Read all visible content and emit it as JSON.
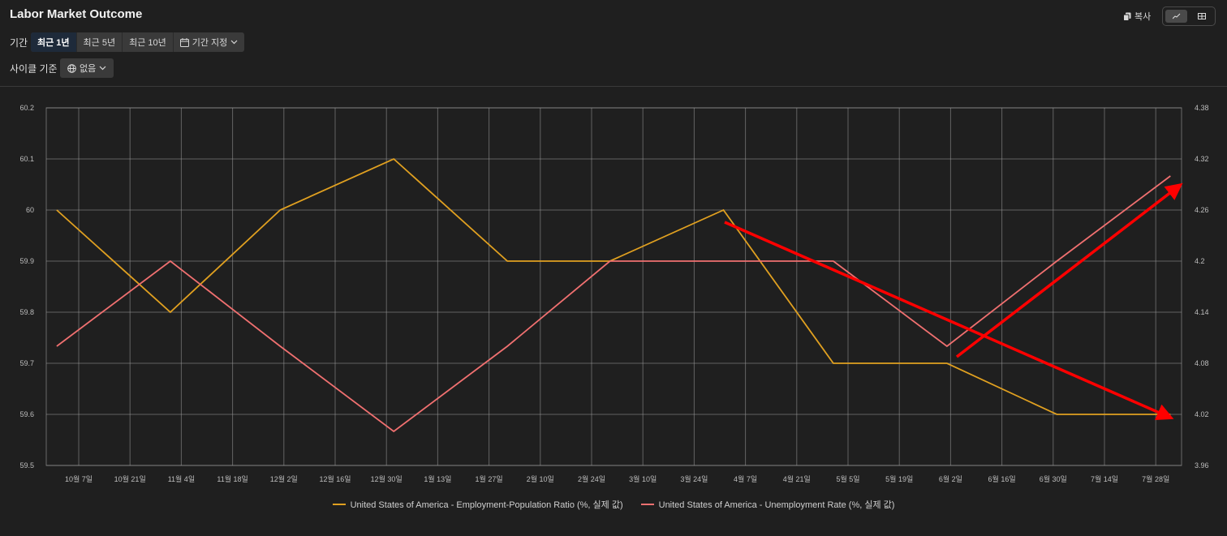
{
  "header": {
    "title": "Labor Market Outcome",
    "copy_label": "복사",
    "copy_icon": "copy-icon",
    "view_icons": [
      "line-chart-icon",
      "table-icon"
    ]
  },
  "filters": {
    "period_label": "기간",
    "period_options": [
      "최근 1년",
      "최근 5년",
      "최근 10년"
    ],
    "period_active_index": 0,
    "custom_period_label": "기간 지정",
    "cycle_label": "사이클 기준",
    "cycle_value": "없음"
  },
  "colors": {
    "employment": "#e0a020",
    "unemployment": "#f07070",
    "arrow": "#ff0000",
    "grid": "#9a9a9a"
  },
  "chart_data": {
    "type": "line",
    "x_ticks": [
      "10월 7일",
      "10월 21일",
      "11월 4일",
      "11월 18일",
      "12월 2일",
      "12월 16일",
      "12월 30일",
      "1월 13일",
      "1월 27일",
      "2월 10일",
      "2월 24일",
      "3월 10일",
      "3월 24일",
      "4월 7일",
      "4월 21일",
      "5월 5일",
      "5월 19일",
      "6월 2일",
      "6월 16일",
      "6월 30일",
      "7월 14일",
      "7월 28일"
    ],
    "y_left": {
      "ticks": [
        "59.5",
        "59.6",
        "59.7",
        "59.8",
        "59.9",
        "60",
        "60.1",
        "60.2"
      ],
      "min": 59.5,
      "max": 60.2
    },
    "y_right": {
      "ticks": [
        "3.96",
        "4.02",
        "4.08",
        "4.14",
        "4.2",
        "4.26",
        "4.32",
        "4.38"
      ],
      "min": 3.96,
      "max": 4.38
    },
    "x_dates": [
      "2024-10-01",
      "2024-11-01",
      "2024-12-01",
      "2025-01-01",
      "2025-02-01",
      "2025-03-01",
      "2025-04-01",
      "2025-05-01",
      "2025-06-01",
      "2025-07-01",
      "2025-08-01"
    ],
    "series": [
      {
        "name": "United States of America - Employment-Population Ratio (%, 실제 값)",
        "axis": "left",
        "color": "#e0a020",
        "values": [
          60.0,
          59.8,
          60.0,
          60.1,
          59.9,
          59.9,
          60.0,
          59.7,
          59.7,
          59.6,
          59.6
        ]
      },
      {
        "name": "United States of America - Unemployment Rate (%, 실제 값)",
        "axis": "right",
        "color": "#f07070",
        "values": [
          4.1,
          4.2,
          4.1,
          4.0,
          4.1,
          4.2,
          4.2,
          4.2,
          4.1,
          4.2,
          4.3
        ]
      }
    ],
    "grid": true,
    "legend_position": "bottom"
  }
}
